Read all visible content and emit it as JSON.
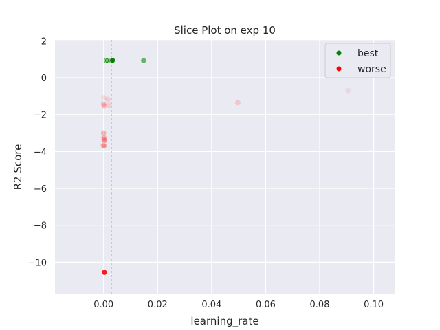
{
  "chart_data": {
    "type": "scatter",
    "title": "Slice Plot on exp 10",
    "xlabel": "learning_rate",
    "ylabel": "R2 Score",
    "xlim": [
      -0.018,
      0.108
    ],
    "ylim": [
      -11.7,
      2.05
    ],
    "xticks": [
      0.0,
      0.02,
      0.04,
      0.06,
      0.08,
      0.1
    ],
    "xtick_labels": [
      "0.00",
      "0.02",
      "0.04",
      "0.06",
      "0.08",
      "0.10"
    ],
    "yticks": [
      2,
      0,
      -2,
      -4,
      -6,
      -8,
      -10
    ],
    "ytick_labels": [
      "2",
      "0",
      "−2",
      "−4",
      "−6",
      "−8",
      "−10"
    ],
    "grid": true,
    "background_color": "#eaeaf2",
    "legend_position": "top-right",
    "reference_line_x": 0.003,
    "series": [
      {
        "name": "best",
        "color": "#008000",
        "points": [
          {
            "x": 0.001,
            "y": 0.93,
            "opacity": 0.6
          },
          {
            "x": 0.0015,
            "y": 0.93,
            "opacity": 0.7
          },
          {
            "x": 0.002,
            "y": 0.93,
            "opacity": 0.75
          },
          {
            "x": 0.0025,
            "y": 0.93,
            "opacity": 0.85
          },
          {
            "x": 0.003,
            "y": 0.93,
            "opacity": 0.9
          },
          {
            "x": 0.0033,
            "y": 0.94,
            "opacity": 0.9
          },
          {
            "x": 0.0148,
            "y": 0.93,
            "opacity": 0.55
          }
        ]
      },
      {
        "name": "worse",
        "color": "#ff0000",
        "points": [
          {
            "x": 0.0003,
            "y": -10.55,
            "opacity": 0.9
          },
          {
            "x": 0.0,
            "y": -3.0,
            "opacity": 0.25
          },
          {
            "x": 0.0001,
            "y": -3.25,
            "opacity": 0.25
          },
          {
            "x": 0.0002,
            "y": -3.35,
            "opacity": 0.25
          },
          {
            "x": 0.0003,
            "y": -3.42,
            "opacity": 0.25
          },
          {
            "x": -0.0001,
            "y": -3.68,
            "opacity": 0.25
          },
          {
            "x": 0.0002,
            "y": -3.7,
            "opacity": 0.25
          },
          {
            "x": 0.0001,
            "y": -1.08,
            "opacity": 0.1
          },
          {
            "x": 0.0,
            "y": -1.42,
            "opacity": 0.2
          },
          {
            "x": 0.0002,
            "y": -1.52,
            "opacity": 0.2
          },
          {
            "x": 0.0016,
            "y": -1.18,
            "opacity": 0.12
          },
          {
            "x": 0.002,
            "y": -1.5,
            "opacity": 0.12
          },
          {
            "x": 0.0497,
            "y": -1.36,
            "opacity": 0.15
          },
          {
            "x": 0.0905,
            "y": -0.7,
            "opacity": 0.08
          }
        ]
      }
    ]
  }
}
